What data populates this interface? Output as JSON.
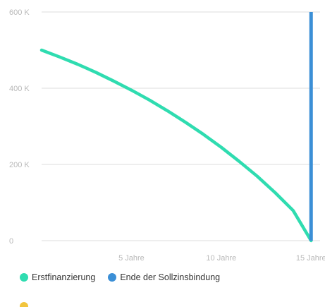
{
  "chart_data": {
    "type": "line",
    "y_ticks": [
      {
        "value": 0,
        "label": "0"
      },
      {
        "value": 200000,
        "label": "200 K"
      },
      {
        "value": 400000,
        "label": "400 K"
      },
      {
        "value": 600000,
        "label": "600 K"
      }
    ],
    "x_ticks": [
      {
        "value": 5,
        "label": "5 Jahre"
      },
      {
        "value": 10,
        "label": "10 Jahre"
      },
      {
        "value": 15,
        "label": "15 Jahre"
      }
    ],
    "xlim": [
      0,
      15.5
    ],
    "ylim": [
      0,
      600000
    ],
    "series": [
      {
        "name": "Erstfinanzierung",
        "color": "#2fdcb0",
        "x": [
          0,
          1,
          2,
          3,
          4,
          5,
          6,
          7,
          8,
          9,
          10,
          11,
          12,
          13,
          14,
          15
        ],
        "y": [
          500000,
          482000,
          463000,
          442000,
          419000,
          395000,
          369000,
          341000,
          311000,
          279000,
          245000,
          208000,
          169000,
          126000,
          79000,
          0
        ]
      }
    ],
    "markers": [
      {
        "name": "Ende der Sollzinsbindung",
        "color": "#3b8fd6",
        "x": 15,
        "y_from": 0,
        "y_to": 600000
      }
    ],
    "grid": true
  },
  "legend": {
    "items": [
      {
        "label": "Erstfinanzierung",
        "color": "#2fdcb0"
      },
      {
        "label": "Ende der Sollzinsbindung",
        "color": "#3b8fd6"
      }
    ],
    "cut_item_color": "#f2c53d"
  }
}
